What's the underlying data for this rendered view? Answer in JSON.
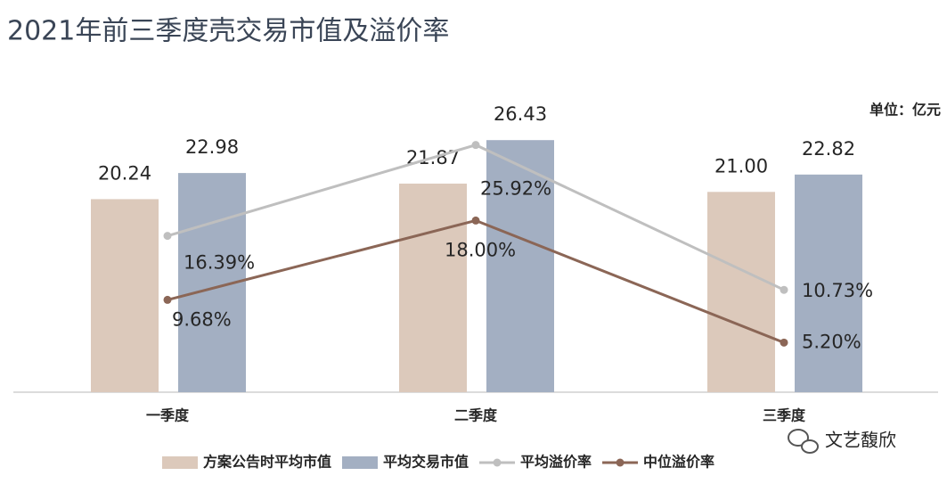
{
  "chart_data": {
    "type": "bar",
    "title": "2021年前三季度壳交易市值及溢价率",
    "unit": "单位：亿元",
    "watermark": "文艺馥欣",
    "categories": [
      "一季度",
      "二季度",
      "三季度"
    ],
    "ylim": [
      0,
      30
    ],
    "y2lim": [
      0,
      30
    ],
    "series": [
      {
        "name": "方案公告时平均市值",
        "type": "bar",
        "color": "#dcc9bb",
        "values": [
          20.24,
          21.87,
          21.0
        ],
        "value_labels": [
          "20.24",
          "21.87",
          "21.00"
        ]
      },
      {
        "name": "平均交易市值",
        "type": "bar",
        "color": "#a3afc2",
        "values": [
          22.98,
          26.43,
          22.82
        ],
        "value_labels": [
          "22.98",
          "26.43",
          "22.82"
        ]
      },
      {
        "name": "平均溢价率",
        "type": "line",
        "axis": "y2",
        "color": "#bfbfbf",
        "values": [
          16.39,
          25.92,
          10.73
        ],
        "value_labels": [
          "16.39%",
          "25.92%",
          "10.73%"
        ]
      },
      {
        "name": "中位溢价率",
        "type": "line",
        "axis": "y2",
        "color": "#8b6656",
        "values": [
          9.68,
          18.0,
          5.2
        ],
        "value_labels": [
          "9.68%",
          "18.00%",
          "5.20%"
        ]
      }
    ]
  }
}
